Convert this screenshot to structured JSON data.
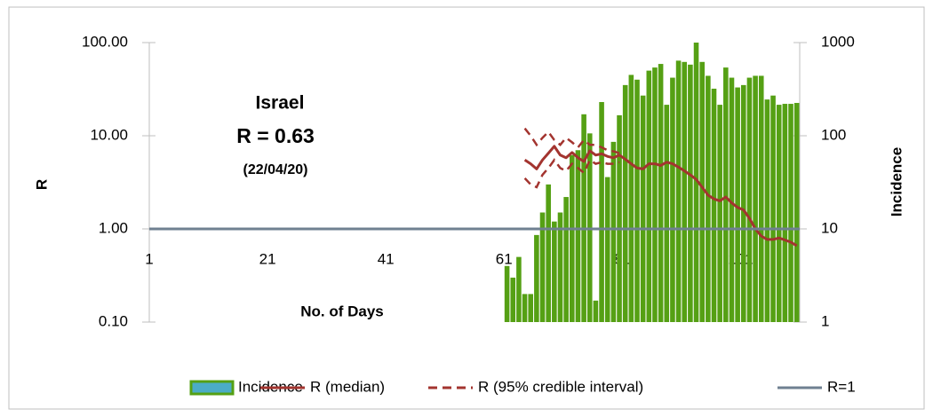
{
  "chart_data": {
    "type": "combo",
    "annotations": [
      "Israel",
      "R = 0.63",
      "(22/04/20)"
    ],
    "xlabel": "No. of Days",
    "ylabel": "R",
    "y2label": "Incidence",
    "categories": [
      "1",
      null,
      null,
      null,
      null,
      null,
      null,
      null,
      null,
      null,
      null,
      null,
      null,
      null,
      null,
      null,
      null,
      null,
      null,
      null,
      "21",
      null,
      null,
      null,
      null,
      null,
      null,
      null,
      null,
      null,
      null,
      null,
      null,
      null,
      null,
      null,
      null,
      null,
      null,
      null,
      "41",
      null,
      null,
      null,
      null,
      null,
      null,
      null,
      null,
      null,
      null,
      null,
      null,
      null,
      null,
      null,
      null,
      null,
      null,
      null,
      "61",
      null,
      null,
      null,
      null,
      null,
      null,
      null,
      null,
      null,
      null,
      null,
      null,
      null,
      null,
      null,
      null,
      null,
      null,
      null,
      "81",
      null,
      null,
      null,
      null,
      null,
      null,
      null,
      null,
      null,
      null,
      null,
      null,
      null,
      null,
      null,
      null,
      null,
      null,
      null,
      "101",
      null,
      null,
      null,
      null,
      null,
      null,
      null,
      null,
      null
    ],
    "ylim": [
      0.1,
      100
    ],
    "log_y": true,
    "yticks": [
      {
        "value": 0.1,
        "label": "0.10"
      },
      {
        "value": 1,
        "label": "1.00"
      },
      {
        "value": 10,
        "label": "10.00"
      },
      {
        "value": 100,
        "label": "100.00"
      }
    ],
    "y2lim": [
      1,
      1000
    ],
    "log_y2": true,
    "y2ticks": [
      1,
      10,
      100,
      1000
    ],
    "series": [
      {
        "name": "Incidence",
        "type": "bar",
        "axis": "y2",
        "color": "#55a014",
        "legend_fill": "#4bacc6",
        "values": [
          null,
          null,
          null,
          null,
          null,
          null,
          null,
          null,
          null,
          null,
          null,
          null,
          null,
          null,
          null,
          null,
          null,
          null,
          null,
          null,
          null,
          null,
          null,
          null,
          null,
          null,
          null,
          null,
          null,
          null,
          null,
          null,
          null,
          null,
          null,
          null,
          null,
          null,
          null,
          null,
          null,
          null,
          null,
          null,
          null,
          null,
          null,
          null,
          null,
          null,
          null,
          null,
          null,
          null,
          null,
          null,
          null,
          null,
          null,
          null,
          4,
          3,
          5,
          2,
          2,
          8.6,
          15,
          30,
          12,
          15,
          22,
          62,
          70,
          170,
          106,
          1.7,
          230,
          36,
          86,
          166,
          350,
          450,
          400,
          270,
          500,
          540,
          590,
          215,
          420,
          640,
          620,
          580,
          1000,
          620,
          440,
          320,
          215,
          540,
          420,
          330,
          350,
          420,
          440,
          440,
          245,
          270,
          215,
          220,
          220,
          225
        ]
      },
      {
        "name": "R (median)",
        "type": "line",
        "color": "#a3342f",
        "values": [
          null,
          null,
          null,
          null,
          null,
          null,
          null,
          null,
          null,
          null,
          null,
          null,
          null,
          null,
          null,
          null,
          null,
          null,
          null,
          null,
          null,
          null,
          null,
          null,
          null,
          null,
          null,
          null,
          null,
          null,
          null,
          null,
          null,
          null,
          null,
          null,
          null,
          null,
          null,
          null,
          null,
          null,
          null,
          null,
          null,
          null,
          null,
          null,
          null,
          null,
          null,
          null,
          null,
          null,
          null,
          null,
          null,
          null,
          null,
          null,
          null,
          null,
          null,
          5.5,
          5.0,
          4.4,
          5.5,
          6.5,
          7.7,
          6.2,
          5.8,
          6.6,
          5.8,
          5.3,
          6.9,
          6.2,
          6.4,
          6.0,
          5.8,
          6.2,
          5.6,
          5.0,
          4.5,
          4.4,
          5.0,
          5.0,
          4.8,
          5.2,
          5.0,
          4.6,
          4.2,
          3.8,
          3.4,
          2.8,
          2.3,
          2.1,
          2.0,
          2.2,
          1.9,
          1.7,
          1.6,
          1.3,
          1.0,
          0.84,
          0.77,
          0.77,
          0.8,
          0.76,
          0.72,
          0.66
        ]
      },
      {
        "name": "R (95% credible interval)",
        "type": "interval",
        "color": "#a3342f",
        "dashed": true,
        "upper": [
          null,
          null,
          null,
          null,
          null,
          null,
          null,
          null,
          null,
          null,
          null,
          null,
          null,
          null,
          null,
          null,
          null,
          null,
          null,
          null,
          null,
          null,
          null,
          null,
          null,
          null,
          null,
          null,
          null,
          null,
          null,
          null,
          null,
          null,
          null,
          null,
          null,
          null,
          null,
          null,
          null,
          null,
          null,
          null,
          null,
          null,
          null,
          null,
          null,
          null,
          null,
          null,
          null,
          null,
          null,
          null,
          null,
          null,
          null,
          null,
          null,
          null,
          null,
          12,
          10,
          8,
          9.5,
          11,
          9,
          8,
          9.5,
          8.5,
          7.5,
          9,
          8,
          8,
          7.5,
          7,
          6.8,
          6.5,
          null,
          null,
          null,
          null,
          null,
          null,
          null,
          null,
          null,
          null,
          null,
          null,
          null,
          null,
          null,
          null,
          null,
          null,
          null,
          null,
          null,
          null,
          null,
          null,
          null,
          null,
          null,
          null,
          null,
          null
        ],
        "lower": [
          null,
          null,
          null,
          null,
          null,
          null,
          null,
          null,
          null,
          null,
          null,
          null,
          null,
          null,
          null,
          null,
          null,
          null,
          null,
          null,
          null,
          null,
          null,
          null,
          null,
          null,
          null,
          null,
          null,
          null,
          null,
          null,
          null,
          null,
          null,
          null,
          null,
          null,
          null,
          null,
          null,
          null,
          null,
          null,
          null,
          null,
          null,
          null,
          null,
          null,
          null,
          null,
          null,
          null,
          null,
          null,
          null,
          null,
          null,
          null,
          null,
          null,
          null,
          3.5,
          3.0,
          2.8,
          3.8,
          4.5,
          5.5,
          4.5,
          4.2,
          5.0,
          4.5,
          4.0,
          5.5,
          5.0,
          5.2,
          5.0,
          5.0,
          5.2,
          null,
          null,
          null,
          null,
          null,
          null,
          null,
          null,
          null,
          null,
          null,
          null,
          null,
          null,
          null,
          null,
          null,
          null,
          null,
          null,
          null,
          null,
          null,
          null,
          null,
          null,
          null,
          null,
          null,
          null
        ]
      },
      {
        "name": "R=1",
        "type": "hline",
        "color": "#6f8091",
        "value": 1
      }
    ]
  }
}
